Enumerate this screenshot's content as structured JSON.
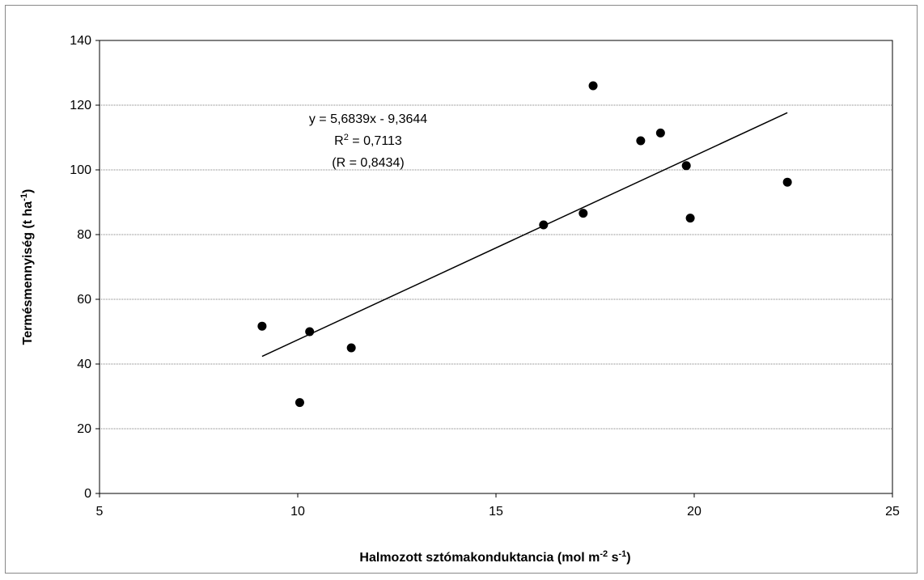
{
  "chart_data": {
    "type": "scatter",
    "title": "",
    "xlabel": "Halmozott sztómakonduktancia (mol m",
    "xlabel_sup1": "-2",
    "xlabel_mid": " s",
    "xlabel_sup2": "-1",
    "xlabel_end": ")",
    "ylabel": "Termésmennyiség (t ha",
    "ylabel_sup": "-1",
    "ylabel_end": ")",
    "xlim": [
      5,
      25
    ],
    "ylim": [
      0,
      140
    ],
    "x_ticks": [
      "5",
      "10",
      "15",
      "20",
      "25"
    ],
    "y_ticks": [
      "0",
      "20",
      "40",
      "60",
      "80",
      "100",
      "120",
      "140"
    ],
    "grid": "horizontal dotted",
    "points": [
      {
        "x": 9.1,
        "y": 51.7
      },
      {
        "x": 10.05,
        "y": 28.1
      },
      {
        "x": 10.3,
        "y": 50.0
      },
      {
        "x": 11.35,
        "y": 45.0
      },
      {
        "x": 16.2,
        "y": 83.0
      },
      {
        "x": 17.2,
        "y": 86.6
      },
      {
        "x": 17.45,
        "y": 126.0
      },
      {
        "x": 18.65,
        "y": 109.0
      },
      {
        "x": 19.15,
        "y": 111.4
      },
      {
        "x": 19.8,
        "y": 101.3
      },
      {
        "x": 19.9,
        "y": 85.1
      },
      {
        "x": 22.35,
        "y": 96.2
      }
    ],
    "trendline": {
      "slope": 5.6839,
      "intercept": -9.3644,
      "x_start": 9.1,
      "x_end": 22.35
    },
    "annotation": {
      "equation": "y = 5,6839x - 9,3644",
      "r2_prefix": "R",
      "r2_sup": "2",
      "r2_value": " = 0,7113",
      "r": "(R = 0,8434)"
    },
    "marker_color": "#000000",
    "line_color": "#000000"
  }
}
